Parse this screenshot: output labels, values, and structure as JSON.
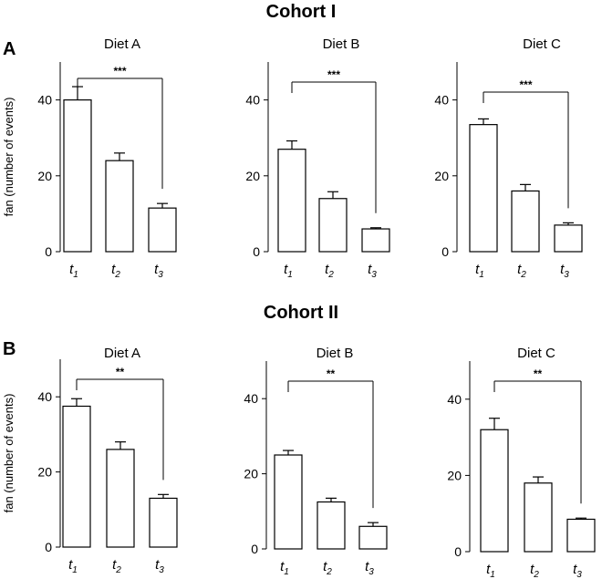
{
  "figure": {
    "cohorts": [
      {
        "title": "Cohort I",
        "panel_letter": "A"
      },
      {
        "title": "Cohort II",
        "panel_letter": "B"
      }
    ]
  },
  "chart_data": [
    {
      "type": "bar",
      "cohort": "Cohort I",
      "panel": "A",
      "title": "Diet A",
      "categories": [
        "t1",
        "t2",
        "t3"
      ],
      "values": [
        40,
        24,
        11.5
      ],
      "errors": [
        3.5,
        2,
        1.2
      ],
      "ylabel": "fan (number of events)",
      "ylim": [
        0,
        50
      ],
      "yticks": [
        0,
        20,
        40
      ],
      "significance": {
        "from": "t1",
        "to": "t3",
        "label": "***"
      }
    },
    {
      "type": "bar",
      "cohort": "Cohort I",
      "panel": "A",
      "title": "Diet B",
      "categories": [
        "t1",
        "t2",
        "t3"
      ],
      "values": [
        27,
        14,
        6
      ],
      "errors": [
        2.2,
        1.8,
        0.3
      ],
      "ylabel": "",
      "ylim": [
        0,
        50
      ],
      "yticks": [
        0,
        20,
        40
      ],
      "significance": {
        "from": "t1",
        "to": "t3",
        "label": "***"
      }
    },
    {
      "type": "bar",
      "cohort": "Cohort I",
      "panel": "A",
      "title": "Diet C",
      "categories": [
        "t1",
        "t2",
        "t3"
      ],
      "values": [
        33.5,
        16,
        7
      ],
      "errors": [
        1.5,
        1.7,
        0.6
      ],
      "ylabel": "",
      "ylim": [
        0,
        50
      ],
      "yticks": [
        0,
        20,
        40
      ],
      "significance": {
        "from": "t1",
        "to": "t3",
        "label": "***"
      }
    },
    {
      "type": "bar",
      "cohort": "Cohort II",
      "panel": "B",
      "title": "Diet A",
      "categories": [
        "t1",
        "t2",
        "t3"
      ],
      "values": [
        37.5,
        26,
        13
      ],
      "errors": [
        2,
        2,
        1
      ],
      "ylabel": "fan (number of events)",
      "ylim": [
        0,
        50
      ],
      "yticks": [
        0,
        20,
        40
      ],
      "significance": {
        "from": "t1",
        "to": "t3",
        "label": "**"
      }
    },
    {
      "type": "bar",
      "cohort": "Cohort II",
      "panel": "B",
      "title": "Diet B",
      "categories": [
        "t1",
        "t2",
        "t3"
      ],
      "values": [
        25,
        12.5,
        6
      ],
      "errors": [
        1.2,
        1,
        1
      ],
      "ylabel": "",
      "ylim": [
        0,
        50
      ],
      "yticks": [
        0,
        20,
        40
      ],
      "significance": {
        "from": "t1",
        "to": "t3",
        "label": "**"
      }
    },
    {
      "type": "bar",
      "cohort": "Cohort II",
      "panel": "B",
      "title": "Diet C",
      "categories": [
        "t1",
        "t2",
        "t3"
      ],
      "values": [
        32,
        18,
        8.5
      ],
      "errors": [
        3,
        1.6,
        0.3
      ],
      "ylabel": "",
      "ylim": [
        0,
        50
      ],
      "yticks": [
        0,
        20,
        40
      ],
      "significance": {
        "from": "t1",
        "to": "t3",
        "label": "**"
      }
    }
  ]
}
